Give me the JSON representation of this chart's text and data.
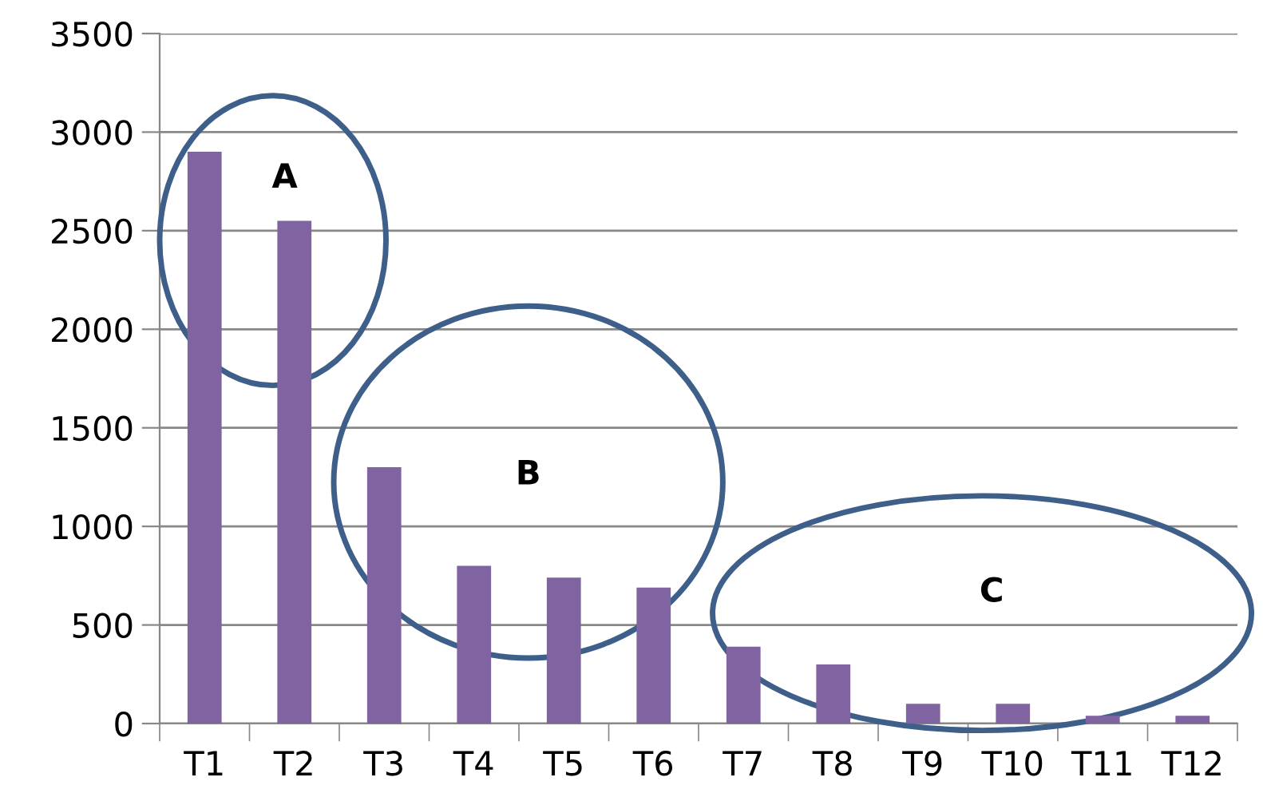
{
  "chart_data": {
    "type": "bar",
    "categories": [
      "T1",
      "T2",
      "T3",
      "T4",
      "T5",
      "T6",
      "T7",
      "T8",
      "T9",
      "T10",
      "T11",
      "T12"
    ],
    "values": [
      2900,
      2550,
      1300,
      800,
      740,
      690,
      390,
      300,
      100,
      100,
      40,
      40
    ],
    "color": "#8064a2",
    "ylim": [
      0,
      3500
    ],
    "yticks": [
      0,
      500,
      1000,
      1500,
      2000,
      2500,
      3000,
      3500
    ],
    "grid": "y",
    "legend": false,
    "annotations": [
      "A",
      "B",
      "C"
    ]
  }
}
